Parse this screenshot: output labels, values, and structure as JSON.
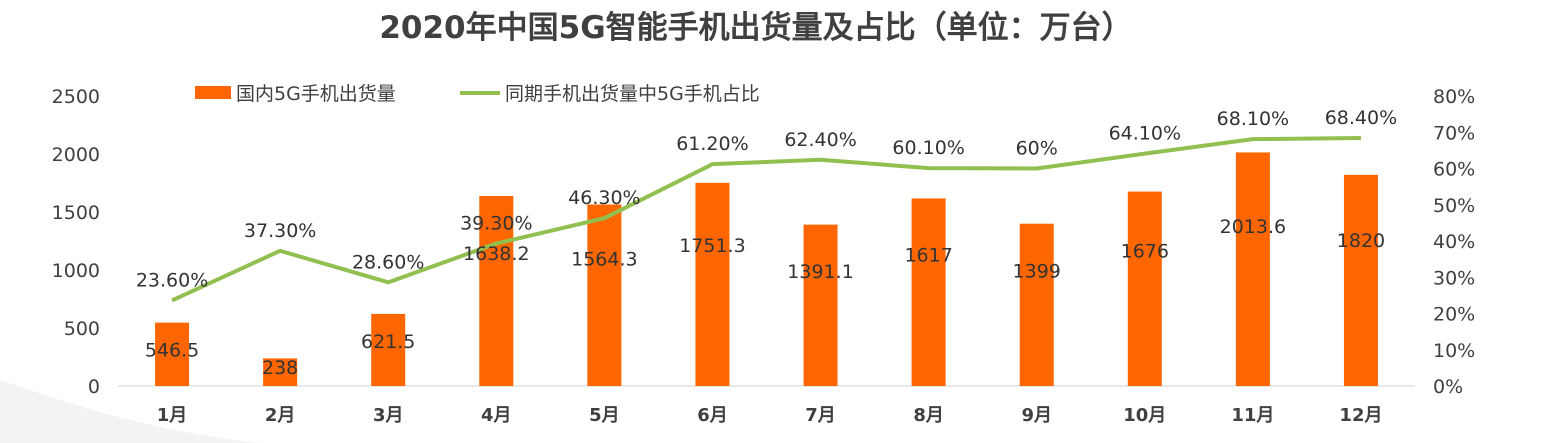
{
  "chart_data": {
    "type": "bar",
    "title": "2020年中国5G智能手机出货量及占比（单位：万台）",
    "categories": [
      "1月",
      "2月",
      "3月",
      "4月",
      "5月",
      "6月",
      "7月",
      "8月",
      "9月",
      "10月",
      "11月",
      "12月"
    ],
    "series": [
      {
        "name": "国内5G手机出货量",
        "type": "bar",
        "axis": "left",
        "values": [
          546.5,
          238,
          621.5,
          1638.2,
          1564.3,
          1751.3,
          1391.1,
          1617,
          1399,
          1676,
          2013.6,
          1820
        ],
        "labels": [
          "546.5",
          "238",
          "621.5",
          "1638.2",
          "1564.3",
          "1751.3",
          "1391.1",
          "1617",
          "1399",
          "1676",
          "2013.6",
          "1820"
        ],
        "color": "#FF6600"
      },
      {
        "name": "同期手机出货量中5G手机占比",
        "type": "line",
        "axis": "right",
        "values": [
          23.6,
          37.3,
          28.6,
          39.3,
          46.3,
          61.2,
          62.4,
          60.1,
          60,
          64.1,
          68.1,
          68.4
        ],
        "labels": [
          "23.60%",
          "37.30%",
          "28.60%",
          "39.30%",
          "46.30%",
          "61.20%",
          "62.40%",
          "60.10%",
          "60%",
          "64.10%",
          "68.10%",
          "68.40%"
        ],
        "color": "#92C050"
      }
    ],
    "y_left": {
      "min": 0,
      "max": 2500,
      "ticks": [
        0,
        500,
        1000,
        1500,
        2000,
        2500
      ]
    },
    "y_right": {
      "min": 0,
      "max": 80,
      "ticks": [
        "0%",
        "10%",
        "20%",
        "30%",
        "40%",
        "50%",
        "60%",
        "70%",
        "80%"
      ]
    },
    "grid": false,
    "legend": "top"
  }
}
